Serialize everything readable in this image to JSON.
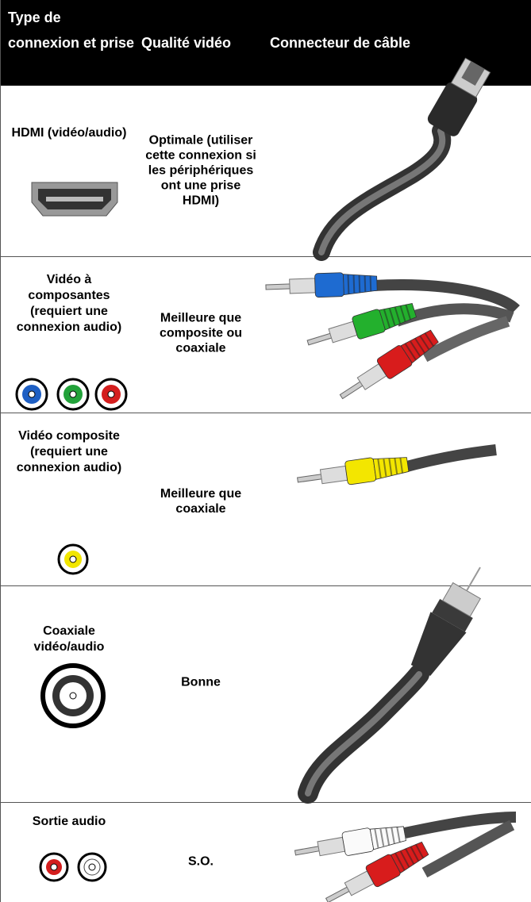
{
  "table": {
    "header": [
      "Type de connexion et prise",
      "Qualité vidéo",
      "Connecteur de câble"
    ],
    "rows": [
      [
        "HDMI (vidéo/audio)",
        "Optimale (utiliser cette connexion si les périphériques ont une prise HDMI)"
      ],
      [
        "Vidéo à composantes (requiert une connexion audio)",
        "Meilleure que composite ou coaxiale"
      ],
      [
        "Vidéo composite (requiert une connexion audio)",
        "Meilleure que coaxiale"
      ],
      [
        "Coaxiale vidéo/audio",
        "Bonne"
      ],
      [
        "Sortie audio",
        "S.O."
      ]
    ]
  }
}
